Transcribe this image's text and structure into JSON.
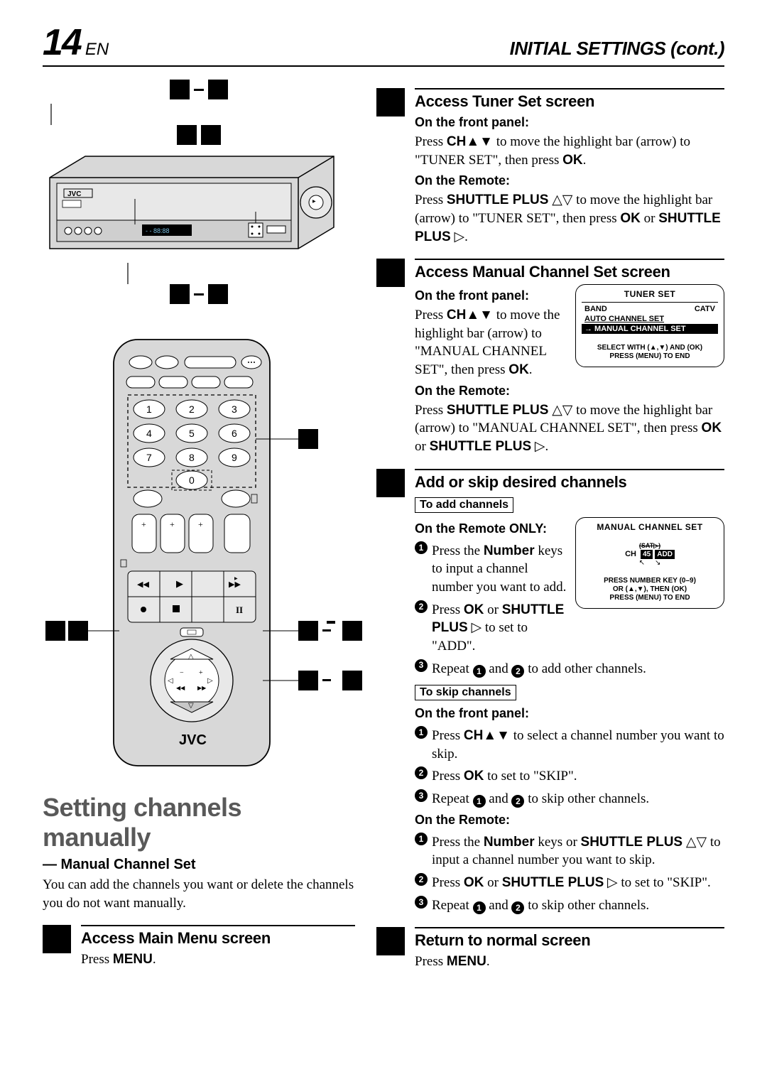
{
  "header": {
    "page_number": "14",
    "lang": "EN",
    "title": "INITIAL SETTINGS (cont.)"
  },
  "left": {
    "main_title": "Setting channels manually",
    "subtitle": "— Manual Channel Set",
    "body": "You can add the channels you want or delete the channels you do not want manually.",
    "step1": {
      "title": "Access Main Menu screen",
      "text": "Press ",
      "key": "MENU",
      "suffix": "."
    }
  },
  "step2": {
    "title": "Access Tuner Set screen",
    "fp_head": "On the front panel:",
    "fp_text_a": "Press ",
    "fp_key1": "CH▲▼",
    "fp_text_b": " to move the highlight bar (arrow) to \"TUNER SET\", then press ",
    "fp_key2": "OK",
    "fp_text_c": ".",
    "rm_head": "On the Remote:",
    "rm_text_a": "Press ",
    "rm_key1": "SHUTTLE PLUS",
    "rm_sym1": " △▽ ",
    "rm_text_b": "to move the highlight bar (arrow) to \"TUNER SET\", then press ",
    "rm_key2": "OK",
    "rm_text_c": " or ",
    "rm_key3": "SHUTTLE PLUS",
    "rm_sym2": " ▷",
    "rm_text_d": "."
  },
  "step3": {
    "title": "Access Manual Channel Set screen",
    "fp_head": "On the front panel:",
    "fp_text_a": "Press ",
    "fp_key1": "CH▲▼",
    "fp_text_b": " to move the highlight bar (arrow) to \"MANUAL CHANNEL SET\", then press ",
    "fp_key2": "OK",
    "fp_text_c": ".",
    "rm_head": "On the Remote:",
    "rm_text_a": "Press ",
    "rm_key1": "SHUTTLE PLUS",
    "rm_sym1": " △▽ ",
    "rm_text_b": "to move the highlight bar (arrow) to \"MANUAL CHANNEL SET\", then press ",
    "rm_key2": "OK",
    "rm_text_c": " or ",
    "rm_key3": "SHUTTLE PLUS",
    "rm_sym2": " ▷",
    "rm_text_d": ".",
    "osd": {
      "title": "TUNER SET",
      "row1_l": "BAND",
      "row1_r": "CATV",
      "row2": "AUTO CHANNEL SET",
      "row3": "→ MANUAL CHANNEL SET",
      "foot1": "SELECT WITH (▲,▼) AND (OK)",
      "foot2": "PRESS (MENU) TO END"
    }
  },
  "step4": {
    "title": "Add or skip desired channels",
    "add_box": "To add channels",
    "rm_only": "On the Remote ONLY:",
    "a1_a": "Press the ",
    "a1_key": "Number",
    "a1_b": " keys to input a channel number you want to add.",
    "a2_a": "Press ",
    "a2_key1": "OK",
    "a2_b": " or ",
    "a2_key2": "SHUTTLE PLUS",
    "a2_sym": " ▷ ",
    "a2_c": "to set to \"ADD\".",
    "a3_a": "Repeat ",
    "a3_b": " and ",
    "a3_c": " to add other channels.",
    "osd": {
      "title": "MANUAL CHANNEL SET",
      "ch_label": "CH",
      "ch_num": "45",
      "ch_state": "ADD",
      "foot1": "PRESS NUMBER KEY (0–9)",
      "foot2": "OR (▲,▼), THEN (OK)",
      "foot3": "PRESS (MENU) TO END"
    },
    "skip_box": "To skip channels",
    "fp_head": "On the front panel:",
    "s1_a": "Press ",
    "s1_key": "CH▲▼",
    "s1_b": " to select a channel number you want to skip.",
    "s2_a": "Press ",
    "s2_key": "OK",
    "s2_b": " to set to \"SKIP\".",
    "s3_a": "Repeat ",
    "s3_b": " and ",
    "s3_c": " to skip other channels.",
    "rm_head": "On the Remote:",
    "r1_a": "Press the ",
    "r1_key1": "Number",
    "r1_b": " keys or ",
    "r1_key2": "SHUTTLE PLUS",
    "r1_sym": " △▽ ",
    "r1_c": "to input a channel number you want to skip.",
    "r2_a": "Press ",
    "r2_key1": "OK",
    "r2_b": " or ",
    "r2_key2": "SHUTTLE PLUS",
    "r2_sym": " ▷ ",
    "r2_c": "to set to \"SKIP\".",
    "r3_a": "Repeat ",
    "r3_b": " and ",
    "r3_c": " to skip other channels."
  },
  "step5": {
    "title": "Return to normal screen",
    "text_a": "Press ",
    "key": "MENU",
    "text_b": "."
  },
  "figures": {
    "vcr_brand": "JVC",
    "vcr_display": "- - 88:88",
    "remote_brand": "JVC",
    "keypad": [
      "1",
      "2",
      "3",
      "4",
      "5",
      "6",
      "7",
      "8",
      "9",
      "0"
    ]
  }
}
